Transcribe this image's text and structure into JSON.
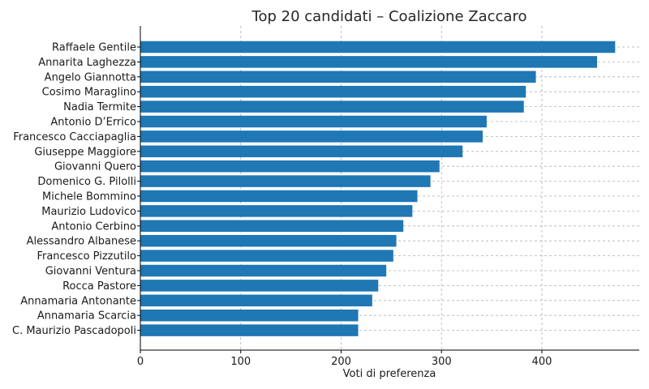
{
  "chart_data": {
    "type": "bar",
    "orientation": "horizontal",
    "title": "Top 20 candidati – Coalizione Zaccaro",
    "xlabel": "Voti di preferenza",
    "ylabel": "",
    "xlim": [
      0,
      497
    ],
    "xticks": [
      "0",
      "100",
      "200",
      "300",
      "400"
    ],
    "grid": true,
    "bar_color": "#1f77b4",
    "categories": [
      "Raffaele Gentile",
      "Annarita Laghezza",
      "Angelo Giannotta",
      "Cosimo Maraglino",
      "Nadia Termite",
      "Antonio D’Errico",
      "Francesco Cacciapaglia",
      "Giuseppe Maggiore",
      "Giovanni Quero",
      "Domenico G. Pilolli",
      "Michele Bommino",
      "Maurizio Ludovico",
      "Antonio Cerbino",
      "Alessandro Albanese",
      "Francesco Pizzutilo",
      "Giovanni Ventura",
      "Rocca Pastore",
      "Annamaria Antonante",
      "Annamaria Scarcia",
      "C. Maurizio Pascadopoli"
    ],
    "values": [
      473,
      455,
      394,
      384,
      382,
      345,
      341,
      321,
      298,
      289,
      276,
      271,
      262,
      255,
      252,
      245,
      237,
      231,
      217,
      217
    ]
  }
}
